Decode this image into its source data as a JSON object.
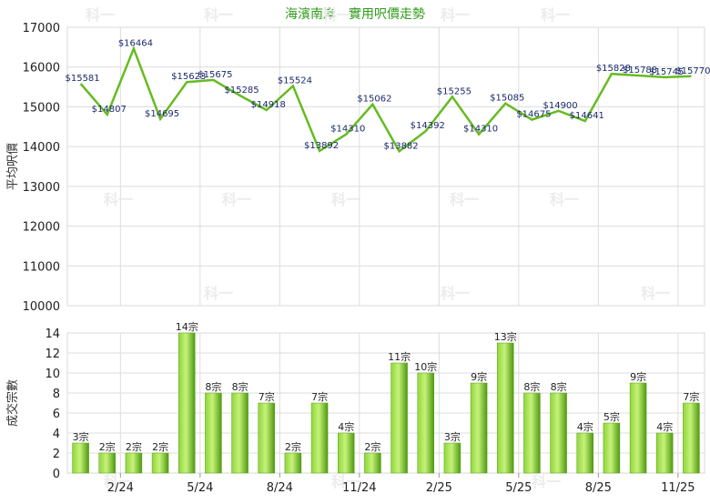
{
  "watermark": "科一",
  "chart_data": [
    {
      "type": "line",
      "title": "海濱南岸 - 實用呎價走勢",
      "ylabel": "平均呎價",
      "ylim": [
        10000,
        17000
      ],
      "yticks": [
        "10000",
        "11000",
        "12000",
        "13000",
        "14000",
        "15000",
        "16000",
        "17000"
      ],
      "grid": true,
      "color": "#66bb22",
      "values": [
        15581,
        14807,
        16464,
        14695,
        15623,
        15675,
        15285,
        14918,
        15524,
        13892,
        14310,
        15062,
        13882,
        14392,
        15255,
        14310,
        15085,
        14675,
        14900,
        14641,
        15828,
        15788,
        15745,
        15770
      ],
      "labels": [
        "$15581",
        "$14807",
        "$16464",
        "$14695",
        "$15623",
        "$15675",
        "$15285",
        "$14918",
        "$15524",
        "$13892",
        "$14310",
        "$15062",
        "$13882",
        "$14392",
        "$15255",
        "$14310",
        "$15085",
        "$14675",
        "$14900",
        "$14641",
        "$15828",
        "$15788",
        "$15745",
        "$15770"
      ]
    },
    {
      "type": "bar",
      "ylabel": "成交宗數",
      "ylim": [
        0,
        14
      ],
      "yticks": [
        "0",
        "2",
        "4",
        "6",
        "8",
        "10",
        "12",
        "14"
      ],
      "grid": true,
      "color": "#77c022",
      "xtick_labels": [
        "2/24",
        "5/24",
        "8/24",
        "11/24",
        "2/25",
        "5/25",
        "8/25",
        "11/25"
      ],
      "values": [
        3,
        2,
        2,
        2,
        14,
        8,
        8,
        7,
        2,
        7,
        4,
        2,
        11,
        10,
        3,
        9,
        13,
        8,
        8,
        4,
        5,
        9,
        4,
        7
      ],
      "labels": [
        "3宗",
        "2宗",
        "2宗",
        "2宗",
        "14宗",
        "8宗",
        "8宗",
        "7宗",
        "2宗",
        "7宗",
        "4宗",
        "2宗",
        "11宗",
        "10宗",
        "3宗",
        "9宗",
        "13宗",
        "8宗",
        "8宗",
        "4宗",
        "5宗",
        "9宗",
        "4宗",
        "7宗"
      ]
    }
  ]
}
